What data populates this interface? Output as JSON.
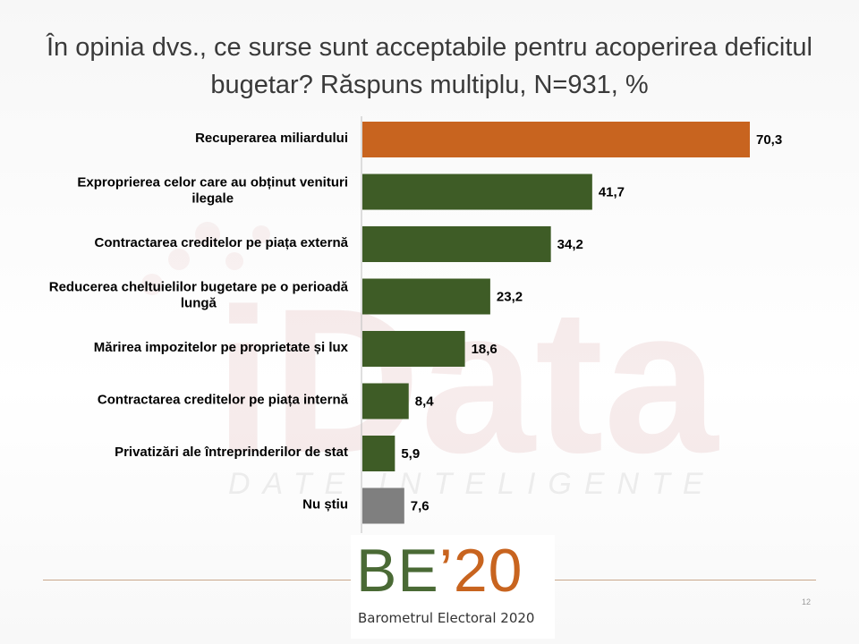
{
  "title": "În opinia dvs., ce surse sunt acceptabile pentru acoperirea deficitul bugetar? Răspuns multiplu, N=931, %",
  "colors": {
    "highlight": "#c8641f",
    "main": "#3e5c26",
    "other": "#7f7f7f"
  },
  "chart_data": {
    "type": "bar",
    "orientation": "horizontal",
    "title": "În opinia dvs., ce surse sunt acceptabile pentru acoperirea deficitul bugetar? Răspuns multiplu, N=931, %",
    "categories": [
      "Recuperarea miliardului",
      "Exproprierea celor care au obținut venituri ilegale",
      "Contractarea creditelor pe piața externă",
      "Reducerea cheltuielilor bugetare pe o perioadă lungă",
      "Mărirea impozitelor pe proprietate și lux",
      "Contractarea creditelor pe piața internă",
      "Privatizări ale întreprinderilor de stat",
      "Nu știu"
    ],
    "value_labels": [
      "70,3",
      "41,7",
      "34,2",
      "23,2",
      "18,6",
      "8,4",
      "5,9",
      "7,6"
    ],
    "values": [
      70.3,
      41.7,
      34.2,
      23.2,
      18.6,
      8.4,
      5.9,
      7.6
    ],
    "bar_colors": [
      "#c8641f",
      "#3e5c26",
      "#3e5c26",
      "#3e5c26",
      "#3e5c26",
      "#3e5c26",
      "#3e5c26",
      "#7f7f7f"
    ],
    "xlim": [
      0,
      70.3
    ],
    "grid": false,
    "legend": "none"
  },
  "logo": {
    "be": "BE",
    "apostrophe": "’",
    "year": "20",
    "subtitle": "Barometrul Electoral 2020"
  },
  "watermark": {
    "brand": "iData",
    "tagline": "DATE INTELIGENTE"
  },
  "page_number": "12"
}
